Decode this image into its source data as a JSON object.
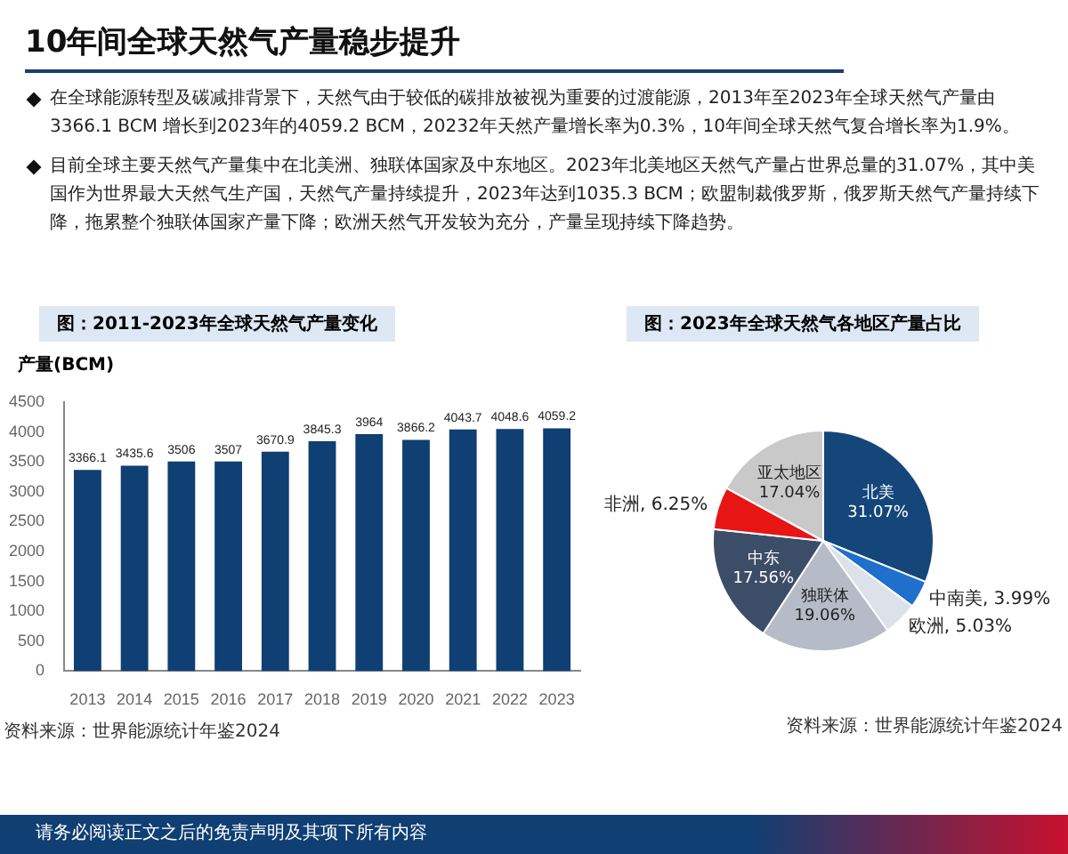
{
  "chart_data": [
    {
      "type": "bar",
      "title": "图：2011-2023年全球天然气产量变化",
      "ylabel": "产量(BCM)",
      "categories": [
        "2013",
        "2014",
        "2015",
        "2016",
        "2017",
        "2018",
        "2019",
        "2020",
        "2021",
        "2022",
        "2023"
      ],
      "values": [
        3366.1,
        3435.6,
        3506,
        3507,
        3670.9,
        3845.3,
        3964,
        3866.2,
        4043.7,
        4048.6,
        4059.2
      ],
      "color": "#0f3f73",
      "ylim": [
        0,
        4500
      ],
      "yticks": [
        0,
        500,
        1000,
        1500,
        2000,
        2500,
        3000,
        3500,
        4000,
        4500
      ],
      "grid": false,
      "legend": false,
      "data_labels": true,
      "annotations": [
        "10年间全球天然气产量稳步提升",
        "在全球能源转型及碳减排背景下，天然气由于较低的碳排放被视为重要的过渡能源，2013年至2023年全球天然气产量由3366.1 BCM 增长到2023年的4059.2 BCM，20232年天然产量增长率为0.3%，10年间全球天然气复合增长率为1.9%。",
        "目前全球主要天然气产量集中在北美洲、独联体国家及中东地区。2023年北美地区天然气产量占世界总量的31.07%，其中美国作为世界最大天然气生产国，天然气产量持续提升，2023年达到1035.3 BCM；欧盟制裁俄罗斯，俄罗斯天然气产量持续下降，拖累整个独联体国家产量下降；欧洲天然气开发较为充分，产量呈现持续下降趋势。",
        "资料来源：世界能源统计年鉴2024"
      ]
    },
    {
      "type": "pie",
      "title": "图：2023年全球天然气各地区产量占比",
      "categories": [
        "北美",
        "中南美",
        "欧洲",
        "独联体",
        "中东",
        "非洲",
        "亚太地区"
      ],
      "values": [
        31.07,
        3.99,
        5.03,
        19.06,
        17.56,
        6.25,
        17.04
      ],
      "value_labels": [
        "31.07%",
        "3.99%",
        "5.03%",
        "19.06%",
        "17.56%",
        "6.25%",
        "17.04%"
      ],
      "colors": [
        "#14467a",
        "#1f6fcc",
        "#dde2ea",
        "#b5bcc8",
        "#3c4d68",
        "#e81515",
        "#c9c9c9"
      ],
      "legend": false,
      "annotations": [
        "资料来源：世界能源统计年鉴2024",
        "请务必阅读正文之后的免责声明及其项下所有内容"
      ]
    }
  ]
}
